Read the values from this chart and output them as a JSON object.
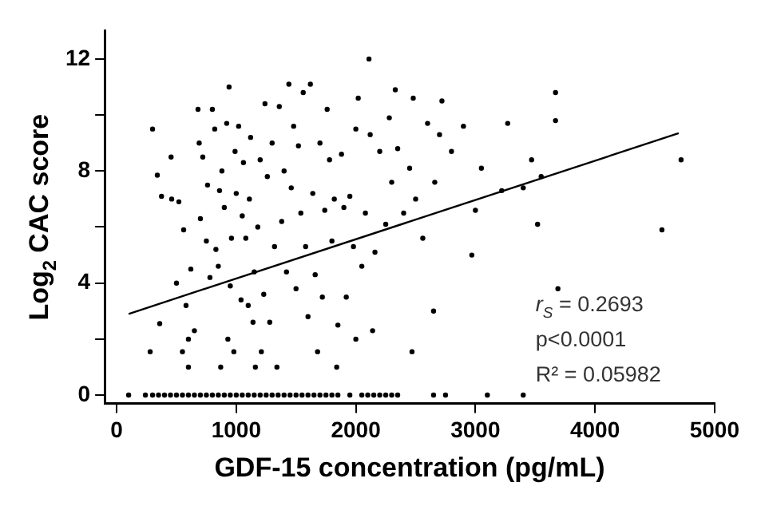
{
  "chart_data": {
    "type": "scatter",
    "xlabel": "GDF-15 concentration (pg/mL)",
    "ylabel": "Log$_{2}$ CAC score",
    "xlim": [
      -100,
      5000
    ],
    "xticks": [
      0,
      1000,
      2000,
      3000,
      4000,
      5000
    ],
    "ylim": [
      -0.3,
      13
    ],
    "yticks": [
      0,
      {
        "value": 2,
        "label": null
      },
      4,
      {
        "value": 6,
        "label": null
      },
      8,
      {
        "value": 10,
        "label": null
      },
      12
    ],
    "grid": false,
    "legend": false,
    "annotations": [
      "r$_{S}$ = 0.2693",
      "p<0.0001",
      "R² = 0.05982"
    ],
    "series": [
      {
        "type": "scatter",
        "color": "#000000",
        "marker": "circle",
        "x": [
          100,
          240,
          300,
          350,
          400,
          450,
          500,
          550,
          600,
          650,
          700,
          750,
          800,
          850,
          900,
          950,
          1000,
          1050,
          1100,
          1150,
          1200,
          1250,
          1300,
          1350,
          1400,
          1450,
          1500,
          1550,
          1600,
          1650,
          1700,
          1750,
          1800,
          1850,
          1950,
          2050,
          2100,
          2150,
          2200,
          2250,
          2300,
          2350,
          2650,
          2750,
          3100,
          3400,
          300,
          340,
          360,
          280,
          375,
          455,
          460,
          500,
          520,
          550,
          560,
          580,
          600,
          600,
          620,
          650,
          680,
          690,
          700,
          720,
          750,
          760,
          780,
          800,
          820,
          830,
          850,
          860,
          870,
          880,
          900,
          920,
          930,
          940,
          950,
          960,
          980,
          990,
          1000,
          1020,
          1040,
          1050,
          1060,
          1080,
          1100,
          1110,
          1120,
          1140,
          1150,
          1160,
          1180,
          1200,
          1210,
          1230,
          1240,
          1260,
          1280,
          1300,
          1320,
          1340,
          1360,
          1380,
          1400,
          1420,
          1440,
          1460,
          1480,
          1500,
          1520,
          1540,
          1560,
          1580,
          1600,
          1620,
          1640,
          1660,
          1680,
          1700,
          1720,
          1740,
          1760,
          1780,
          1800,
          1820,
          1840,
          1850,
          1880,
          1900,
          1920,
          1950,
          1980,
          2000,
          2000,
          2020,
          2050,
          2080,
          2110,
          2120,
          2140,
          2160,
          2200,
          2250,
          2280,
          2300,
          2330,
          2350,
          2400,
          2450,
          2470,
          2480,
          2500,
          2560,
          2600,
          2650,
          2660,
          2700,
          2720,
          2800,
          2900,
          2970,
          3000,
          3050,
          3220,
          3270,
          3400,
          3470,
          3520,
          3550,
          3670,
          3670,
          3690,
          4560,
          4720
        ],
        "values": [
          0,
          0,
          0,
          0,
          0,
          0,
          0,
          0,
          0,
          0,
          0,
          0,
          0,
          0,
          0,
          0,
          0,
          0,
          0,
          0,
          0,
          0,
          0,
          0,
          0,
          0,
          0,
          0,
          0,
          0,
          0,
          0,
          0,
          0,
          0,
          0,
          0,
          0,
          0,
          0,
          0,
          0,
          0,
          0,
          0,
          0,
          9.5,
          7.85,
          2.55,
          1.55,
          7.1,
          8.5,
          7.0,
          4.0,
          6.9,
          1.55,
          5.9,
          3.2,
          2.0,
          1.0,
          4.5,
          2.3,
          10.2,
          9.0,
          6.3,
          8.5,
          5.5,
          7.5,
          4.2,
          10.2,
          9.5,
          5.2,
          4.6,
          7.3,
          1.0,
          8.0,
          6.7,
          9.7,
          2.0,
          11.0,
          3.9,
          5.6,
          1.55,
          8.7,
          7.2,
          9.6,
          3.4,
          6.4,
          8.3,
          5.6,
          3.2,
          7.0,
          9.2,
          2.6,
          4.4,
          1.0,
          6.0,
          8.4,
          1.55,
          3.6,
          10.4,
          7.8,
          2.6,
          9.0,
          5.3,
          1.0,
          10.3,
          6.2,
          8.0,
          4.4,
          11.1,
          7.4,
          9.6,
          3.8,
          8.9,
          6.5,
          10.8,
          5.3,
          2.8,
          11.1,
          7.2,
          4.3,
          1.55,
          9.0,
          3.5,
          6.6,
          10.2,
          8.4,
          5.5,
          7.0,
          1.0,
          2.5,
          8.6,
          6.7,
          3.5,
          7.1,
          5.3,
          2.0,
          9.5,
          10.6,
          4.6,
          6.5,
          12.0,
          9.3,
          2.3,
          5.1,
          8.7,
          6.1,
          9.9,
          7.6,
          10.9,
          8.8,
          6.5,
          8.1,
          1.55,
          10.6,
          7.0,
          5.6,
          9.7,
          3.0,
          7.6,
          9.3,
          10.5,
          8.7,
          9.6,
          5.0,
          6.6,
          8.1,
          7.3,
          9.7,
          7.4,
          8.4,
          6.1,
          7.8,
          10.8,
          9.8,
          3.8,
          5.9,
          8.4
        ]
      },
      {
        "type": "line",
        "color": "#000000",
        "marker": "none",
        "x": [
          100,
          4700
        ],
        "values": [
          2.9,
          9.35
        ]
      }
    ]
  }
}
